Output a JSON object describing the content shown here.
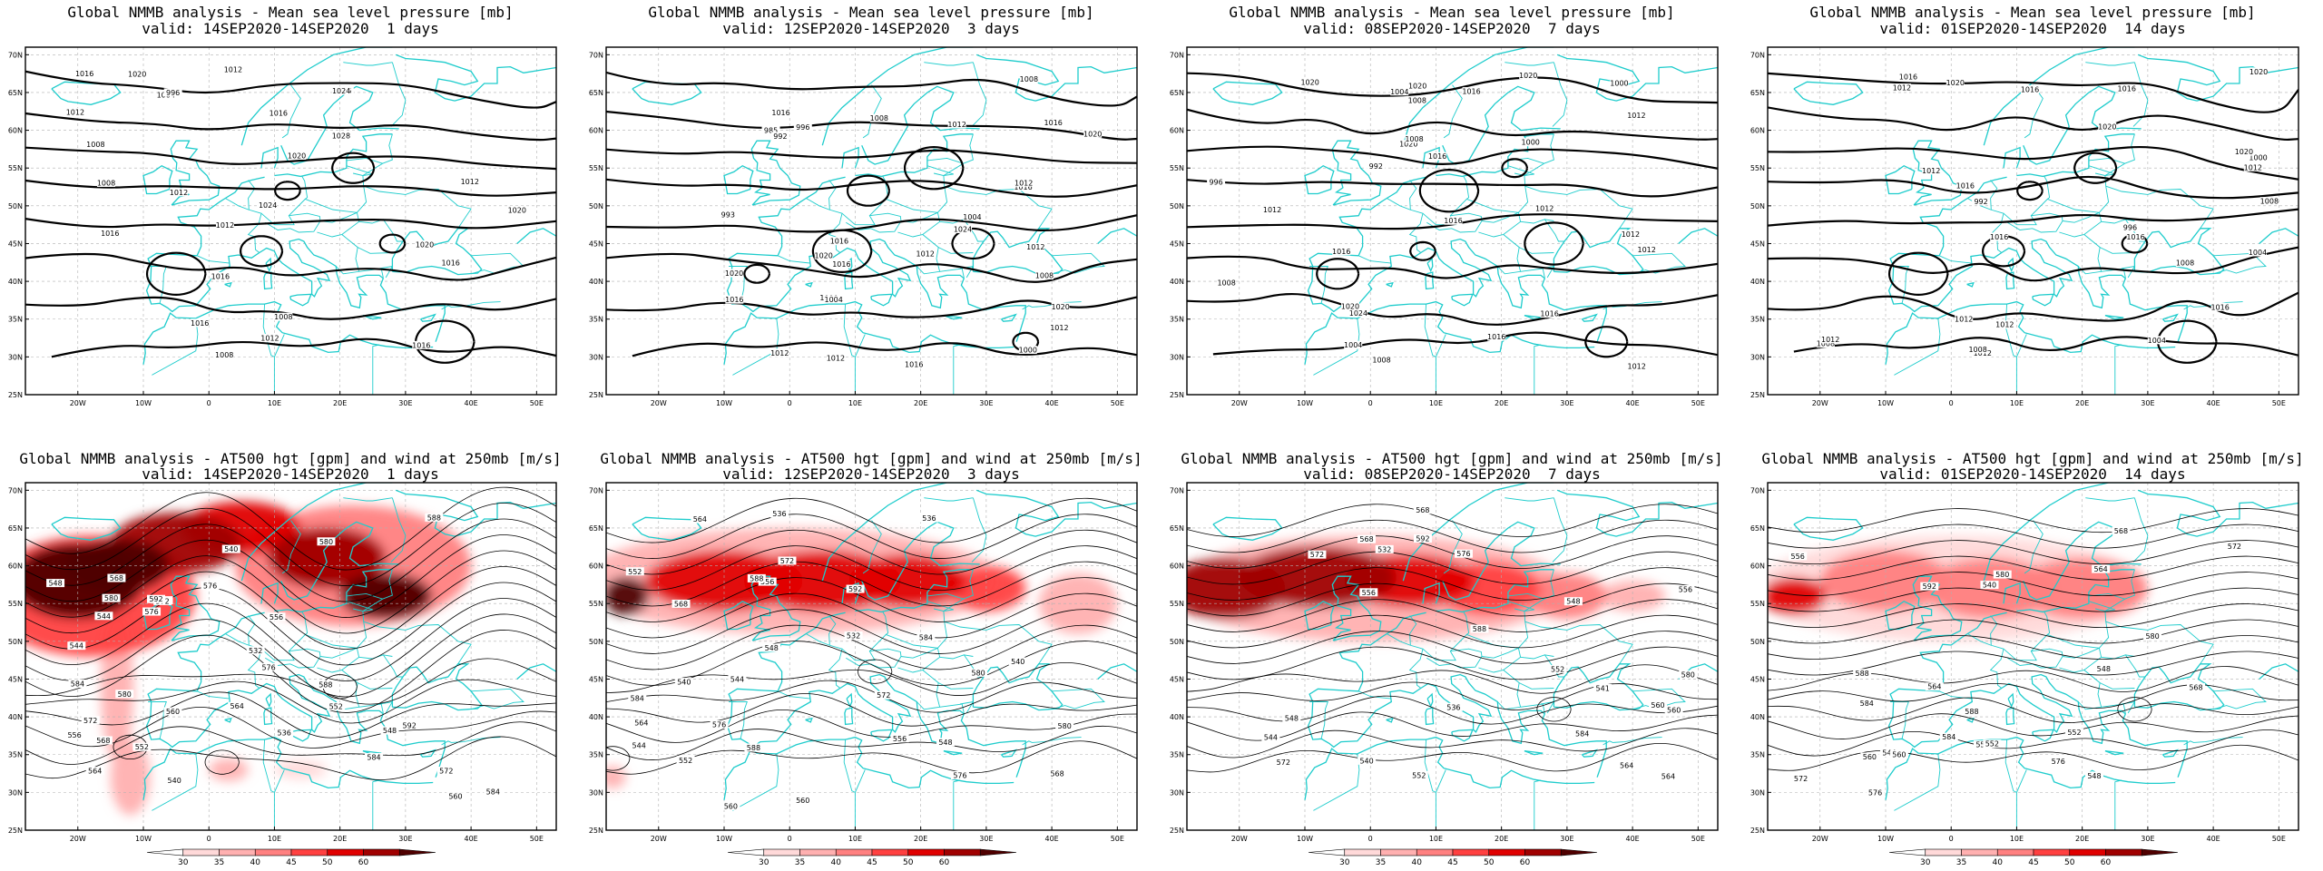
{
  "panels": [
    {
      "row": 0,
      "col": 0,
      "title": "Global NMMB analysis - Mean sea level pressure [mb]",
      "subtitle": "valid: 14SEP2020-14SEP2020  1 days",
      "kind": "mslp",
      "contour_labels": [
        "1004",
        "996",
        "1012",
        "1008",
        "1016",
        "1020",
        "1024",
        "1028",
        "1020",
        "1016",
        "1012",
        "1008",
        "1016",
        "1020",
        "1016",
        "1012",
        "1008",
        "1016",
        "1024",
        "1012",
        "1016",
        "1020",
        "1016",
        "1012",
        "1012",
        "1008",
        "996"
      ]
    },
    {
      "row": 0,
      "col": 1,
      "title": "Global NMMB analysis - Mean sea level pressure [mb]",
      "subtitle": "valid: 12SEP2020-14SEP2020  3 days",
      "kind": "mslp",
      "contour_labels": [
        "985",
        "992",
        "996",
        "1000",
        "1004",
        "1000",
        "1004",
        "1008",
        "1012",
        "1016",
        "1020",
        "1012",
        "1016",
        "1024",
        "1020",
        "1016",
        "1012",
        "1008",
        "1016",
        "1020",
        "1016",
        "1012",
        "1012",
        "1016",
        "1020",
        "1012",
        "1008",
        "1016",
        "1012",
        "993"
      ]
    },
    {
      "row": 0,
      "col": 2,
      "title": "Global NMMB analysis - Mean sea level pressure [mb]",
      "subtitle": "valid: 08SEP2020-14SEP2020  7 days",
      "kind": "mslp",
      "contour_labels": [
        "992",
        "996",
        "1000",
        "1004",
        "1008",
        "1000",
        "1004",
        "1008",
        "1012",
        "1016",
        "1020",
        "1012",
        "1016",
        "1020",
        "1024",
        "1020",
        "1016",
        "1012",
        "1008",
        "1020",
        "1016",
        "1012",
        "1016",
        "1012",
        "1008",
        "1012",
        "1016",
        "1020"
      ]
    },
    {
      "row": 0,
      "col": 3,
      "title": "Global NMMB analysis - Mean sea level pressure [mb]",
      "subtitle": "valid: 01SEP2020-14SEP2020  14 days",
      "kind": "mslp",
      "contour_labels": [
        "992",
        "996",
        "1000",
        "1004",
        "1008",
        "1012",
        "1016",
        "1020",
        "1004",
        "1008",
        "1012",
        "1016",
        "1020",
        "1016",
        "1012",
        "1008",
        "1016",
        "1020",
        "1016",
        "1012",
        "1012",
        "1016",
        "1020",
        "1016",
        "1012",
        "1008",
        "1012"
      ]
    },
    {
      "row": 1,
      "col": 0,
      "title": "Global NMMB analysis - AT500 hgt [gpm] and wind at 250mb [m/s]",
      "subtitle": "valid: 14SEP2020-14SEP2020  1 days",
      "kind": "z500",
      "contour_labels": [
        "540",
        "544",
        "548",
        "552",
        "556",
        "560",
        "564",
        "568",
        "572",
        "576",
        "580",
        "584",
        "588",
        "592",
        "540",
        "536",
        "532",
        "544",
        "548",
        "552",
        "556",
        "560",
        "564",
        "568",
        "572",
        "576",
        "580",
        "584",
        "588",
        "572",
        "576",
        "580",
        "584",
        "588",
        "592"
      ]
    },
    {
      "row": 1,
      "col": 1,
      "title": "Global NMMB analysis - AT500 hgt [gpm] and wind at 250mb [m/s]",
      "subtitle": "valid: 12SEP2020-14SEP2020  3 days",
      "kind": "z500",
      "contour_labels": [
        "536",
        "540",
        "544",
        "548",
        "552",
        "556",
        "560",
        "564",
        "568",
        "572",
        "576",
        "580",
        "584",
        "588",
        "592",
        "532",
        "536",
        "540",
        "544",
        "548",
        "552",
        "556",
        "560",
        "564",
        "568",
        "572",
        "576",
        "580",
        "584",
        "588"
      ]
    },
    {
      "row": 1,
      "col": 2,
      "title": "Global NMMB analysis - AT500 hgt [gpm] and wind at 250mb [m/s]",
      "subtitle": "valid: 08SEP2020-14SEP2020  7 days",
      "kind": "z500",
      "contour_labels": [
        "532",
        "536",
        "540",
        "544",
        "548",
        "552",
        "556",
        "560",
        "564",
        "568",
        "572",
        "576",
        "580",
        "584",
        "588",
        "592",
        "541",
        "548",
        "552",
        "556",
        "560",
        "564",
        "568",
        "572"
      ]
    },
    {
      "row": 1,
      "col": 3,
      "title": "Global NMMB analysis - AT500 hgt [gpm] and wind at 250mb [m/s]",
      "subtitle": "valid: 01SEP2020-14SEP2020  14 days",
      "kind": "z500",
      "contour_labels": [
        "540",
        "544",
        "548",
        "552",
        "556",
        "560",
        "564",
        "568",
        "572",
        "576",
        "580",
        "584",
        "588",
        "592",
        "548",
        "552",
        "556",
        "560",
        "564",
        "568",
        "572",
        "576",
        "580",
        "584",
        "588"
      ]
    }
  ],
  "lat_ticks": [
    "70N",
    "65N",
    "60N",
    "55N",
    "50N",
    "45N",
    "40N",
    "35N",
    "30N",
    "25N"
  ],
  "lon_ticks": [
    "20W",
    "10W",
    "0",
    "10E",
    "20E",
    "30E",
    "40E",
    "50E"
  ],
  "colorbar": {
    "ticks": [
      "30",
      "35",
      "40",
      "45",
      "50",
      "60"
    ],
    "colors": [
      "#ffffff",
      "#ffd9d9",
      "#ffb0b0",
      "#ff8080",
      "#ff4040",
      "#e00000",
      "#a00000",
      "#500000"
    ]
  },
  "colors": {
    "coast": "#1ecccc",
    "contour": "#000000",
    "frame": "#000000",
    "grid": "#b0b0b0"
  }
}
